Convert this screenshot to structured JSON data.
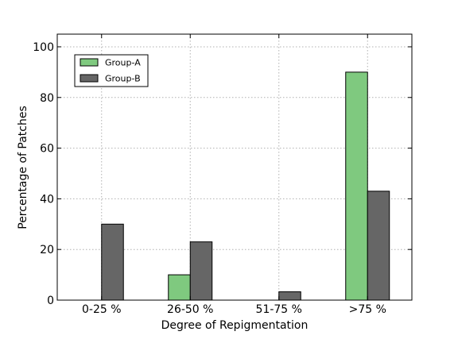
{
  "chart_data": {
    "type": "bar",
    "categories": [
      "0-25 %",
      "26-50 %",
      "51-75 %",
      ">75 %"
    ],
    "series": [
      {
        "name": "Group-A",
        "values": [
          0,
          10,
          0,
          90
        ],
        "color": "#7fc97f"
      },
      {
        "name": "Group-B",
        "values": [
          30,
          23,
          3.3,
          43
        ],
        "color": "#666666"
      }
    ],
    "title": "",
    "xlabel": "Degree of Repigmentation",
    "ylabel": "Percentage of Patches",
    "ylim": [
      0,
      105
    ],
    "yticks": [
      0,
      20,
      40,
      60,
      80,
      100
    ],
    "grid": true,
    "legend_position": "upper-left"
  }
}
